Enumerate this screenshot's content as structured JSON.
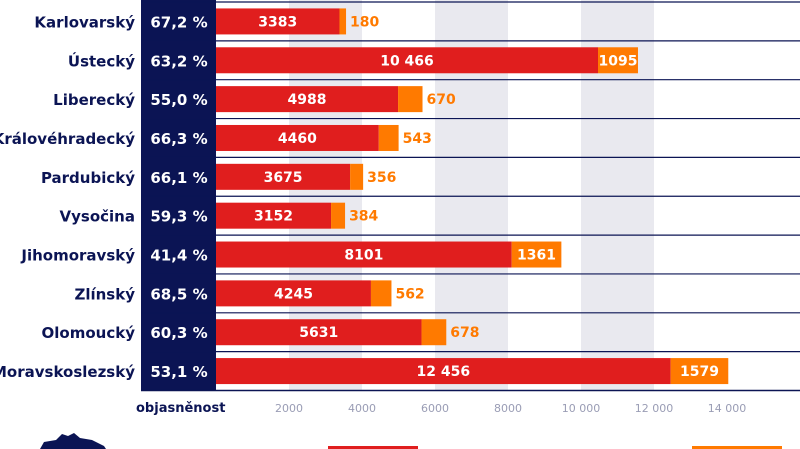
{
  "chart_data": {
    "type": "bar",
    "orientation": "horizontal",
    "stacked": true,
    "categories": [
      "Karlovarský",
      "Ústecký",
      "Liberecký",
      "Královéhradecký",
      "Pardubický",
      "Vysočina",
      "Jihomoravský",
      "Zlínský",
      "Olomoucký",
      "Moravskoslezský"
    ],
    "rates": [
      "67,2 %",
      "63,2 %",
      "55,0 %",
      "66,3 %",
      "66,1 %",
      "59,3 %",
      "41,4 %",
      "68,5 %",
      "60,3 %",
      "53,1 %"
    ],
    "rate_column_label": "objasněnost",
    "series": [
      {
        "values": [
          3383,
          10466,
          4988,
          4460,
          3675,
          3152,
          8101,
          4245,
          5631,
          12456
        ],
        "labels": [
          "3383",
          "10 466",
          "4988",
          "4460",
          "3675",
          "3152",
          "8101",
          "4245",
          "5631",
          "12 456"
        ],
        "color": "#e01e1e"
      },
      {
        "values": [
          180,
          1095,
          670,
          543,
          356,
          384,
          1361,
          562,
          678,
          1579
        ],
        "labels": [
          "180",
          "1095",
          "670",
          "543",
          "356",
          "384",
          "1361",
          "562",
          "678",
          "1579"
        ],
        "color": "#ff7a00"
      }
    ],
    "xticks": [
      2000,
      4000,
      6000,
      8000,
      10000,
      12000,
      14000
    ],
    "xtick_labels": [
      "2000",
      "4000",
      "6000",
      "8000",
      "10 000",
      "12 000",
      "14 000"
    ],
    "xlim": [
      0,
      16000
    ],
    "grid": "alternating vertical bands",
    "colors": {
      "navy": "#0b1454",
      "band": "#e9e9ef",
      "tick": "#9a9db5"
    }
  }
}
